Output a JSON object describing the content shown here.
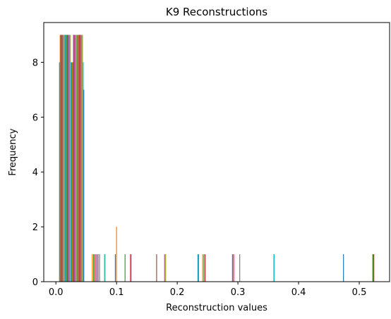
{
  "chart_data": {
    "type": "bar",
    "title": "K9 Reconstructions",
    "xlabel": "Reconstruction values",
    "ylabel": "Frequency",
    "xlim": [
      -0.02,
      0.55
    ],
    "ylim": [
      0,
      9.45
    ],
    "xticks": [
      0.0,
      0.1,
      0.2,
      0.3,
      0.4,
      0.5
    ],
    "yticks": [
      0,
      2,
      4,
      6,
      8
    ],
    "grid": false,
    "colors": [
      "#1f77b4",
      "#ff7f0e",
      "#2ca02c",
      "#d62728",
      "#9467bd",
      "#8c564b",
      "#e377c2",
      "#7f7f7f",
      "#bcbd22",
      "#17becf"
    ],
    "bars": [
      {
        "x": 0.006,
        "y": 8
      },
      {
        "x": 0.007,
        "y": 9
      },
      {
        "x": 0.008,
        "y": 9
      },
      {
        "x": 0.009,
        "y": 9
      },
      {
        "x": 0.01,
        "y": 9
      },
      {
        "x": 0.011,
        "y": 9
      },
      {
        "x": 0.012,
        "y": 9
      },
      {
        "x": 0.013,
        "y": 9
      },
      {
        "x": 0.014,
        "y": 9
      },
      {
        "x": 0.015,
        "y": 9
      },
      {
        "x": 0.016,
        "y": 9
      },
      {
        "x": 0.017,
        "y": 9
      },
      {
        "x": 0.018,
        "y": 9
      },
      {
        "x": 0.019,
        "y": 9
      },
      {
        "x": 0.02,
        "y": 9
      },
      {
        "x": 0.021,
        "y": 9
      },
      {
        "x": 0.022,
        "y": 9
      },
      {
        "x": 0.023,
        "y": 9
      },
      {
        "x": 0.024,
        "y": 9
      },
      {
        "x": 0.025,
        "y": 8
      },
      {
        "x": 0.026,
        "y": 8
      },
      {
        "x": 0.027,
        "y": 8
      },
      {
        "x": 0.028,
        "y": 8
      },
      {
        "x": 0.029,
        "y": 9
      },
      {
        "x": 0.03,
        "y": 9
      },
      {
        "x": 0.031,
        "y": 9
      },
      {
        "x": 0.032,
        "y": 9
      },
      {
        "x": 0.033,
        "y": 9
      },
      {
        "x": 0.034,
        "y": 9
      },
      {
        "x": 0.035,
        "y": 9
      },
      {
        "x": 0.036,
        "y": 9
      },
      {
        "x": 0.037,
        "y": 9
      },
      {
        "x": 0.038,
        "y": 9
      },
      {
        "x": 0.039,
        "y": 9
      },
      {
        "x": 0.04,
        "y": 9
      },
      {
        "x": 0.041,
        "y": 9
      },
      {
        "x": 0.042,
        "y": 9
      },
      {
        "x": 0.043,
        "y": 9
      },
      {
        "x": 0.044,
        "y": 9
      },
      {
        "x": 0.045,
        "y": 8
      },
      {
        "x": 0.046,
        "y": 7
      },
      {
        "x": 0.06,
        "y": 1
      },
      {
        "x": 0.062,
        "y": 1
      },
      {
        "x": 0.064,
        "y": 1
      },
      {
        "x": 0.066,
        "y": 1
      },
      {
        "x": 0.068,
        "y": 1
      },
      {
        "x": 0.07,
        "y": 1
      },
      {
        "x": 0.072,
        "y": 1
      },
      {
        "x": 0.08,
        "y": 1
      },
      {
        "x": 0.081,
        "y": 1
      },
      {
        "x": 0.098,
        "y": 1
      },
      {
        "x": 0.1,
        "y": 2
      },
      {
        "x": 0.114,
        "y": 1
      },
      {
        "x": 0.123,
        "y": 1
      },
      {
        "x": 0.124,
        "y": 1
      },
      {
        "x": 0.166,
        "y": 1
      },
      {
        "x": 0.179,
        "y": 1
      },
      {
        "x": 0.18,
        "y": 1
      },
      {
        "x": 0.181,
        "y": 1
      },
      {
        "x": 0.234,
        "y": 1
      },
      {
        "x": 0.235,
        "y": 1
      },
      {
        "x": 0.242,
        "y": 1
      },
      {
        "x": 0.244,
        "y": 1
      },
      {
        "x": 0.246,
        "y": 1
      },
      {
        "x": 0.291,
        "y": 1
      },
      {
        "x": 0.292,
        "y": 1
      },
      {
        "x": 0.294,
        "y": 1
      },
      {
        "x": 0.303,
        "y": 1
      },
      {
        "x": 0.359,
        "y": 1
      },
      {
        "x": 0.36,
        "y": 1
      },
      {
        "x": 0.474,
        "y": 1
      },
      {
        "x": 0.522,
        "y": 1
      },
      {
        "x": 0.523,
        "y": 1
      },
      {
        "x": 0.524,
        "y": 1
      }
    ]
  }
}
